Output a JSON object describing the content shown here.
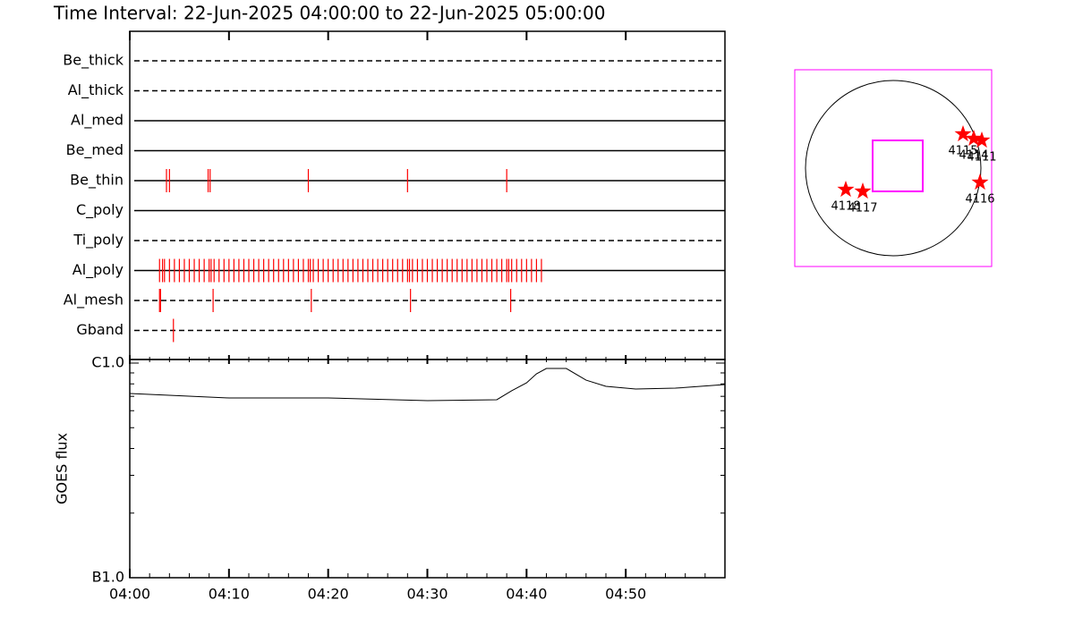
{
  "chart_data": [
    {
      "type": "timeline",
      "title": "Time Interval: 22-Jun-2025 04:00:00 to 22-Jun-2025 05:00:00",
      "rows": [
        "Be_thick",
        "Al_thick",
        "Al_med",
        "Be_med",
        "Be_thin",
        "C_poly",
        "Ti_poly",
        "Al_poly",
        "Al_mesh",
        "Gband"
      ],
      "dashed": [
        true,
        true,
        false,
        false,
        false,
        false,
        true,
        false,
        true,
        true
      ],
      "color": "#ff0000",
      "xlim": [
        0,
        60
      ],
      "events": [
        [],
        [],
        [],
        [],
        [
          3.7,
          4.0,
          7.9,
          8.1,
          18.0,
          28.0,
          38.0
        ],
        [],
        [],
        [
          3.0,
          3.3,
          3.5,
          4.0,
          4.5,
          5.0,
          5.5,
          6.0,
          6.5,
          7.0,
          7.5,
          8.0,
          8.2,
          8.5,
          9.0,
          9.5,
          10.0,
          10.5,
          11.0,
          11.5,
          12.0,
          12.5,
          13.0,
          13.5,
          14.0,
          14.5,
          15.0,
          15.5,
          16.0,
          16.5,
          17.0,
          17.5,
          18.0,
          18.2,
          18.5,
          19.0,
          19.5,
          20.0,
          20.5,
          21.0,
          21.5,
          22.0,
          22.5,
          23.0,
          23.5,
          24.0,
          24.5,
          25.0,
          25.5,
          26.0,
          26.5,
          27.0,
          27.5,
          28.0,
          28.2,
          28.5,
          29.0,
          29.5,
          30.0,
          30.5,
          31.0,
          31.5,
          32.0,
          32.5,
          33.0,
          33.5,
          34.0,
          34.5,
          35.0,
          35.5,
          36.0,
          36.5,
          37.0,
          37.5,
          38.0,
          38.2,
          38.5,
          39.0,
          39.5,
          40.0,
          40.5,
          41.0,
          41.5
        ],
        [
          3.0,
          3.1,
          8.4,
          18.3,
          28.3,
          38.4
        ],
        [
          4.4
        ]
      ]
    },
    {
      "type": "line",
      "ylabel": "GOES flux",
      "log": true,
      "xlim": [
        0,
        60
      ],
      "ylim": [
        1e-07,
        1e-06
      ],
      "yticks": [
        {
          "value": 1e-06,
          "label": "C1.0"
        },
        {
          "value": 1e-07,
          "label": "B1.0"
        }
      ],
      "xticks": [
        {
          "value": 0,
          "label": "04:00"
        },
        {
          "value": 10,
          "label": "04:10"
        },
        {
          "value": 20,
          "label": "04:20"
        },
        {
          "value": 30,
          "label": "04:30"
        },
        {
          "value": 40,
          "label": "04:40"
        },
        {
          "value": 50,
          "label": "04:50"
        }
      ],
      "color": "#000000",
      "x": [
        0,
        10,
        20,
        30,
        37,
        38.5,
        40,
        41,
        42,
        44,
        46,
        48,
        51,
        55,
        60
      ],
      "values": [
        7.22e-07,
        6.88e-07,
        6.88e-07,
        6.68e-07,
        6.75e-07,
        7.43e-07,
        8.09e-07,
        8.91e-07,
        9.44e-07,
        9.44e-07,
        8.33e-07,
        7.79e-07,
        7.57e-07,
        7.64e-07,
        7.94e-07
      ]
    },
    {
      "type": "scatter",
      "xlim": [
        -1100,
        1100
      ],
      "ylim": [
        -1100,
        1100
      ],
      "limb_radius": 980,
      "fov_x": [
        -230,
        330
      ],
      "fov_y": [
        -260,
        310
      ],
      "frame_color": "#ff00ff",
      "color": "#ff0000",
      "labels": [
        "4115",
        "4114",
        "4111",
        "4116",
        "4118",
        "4117"
      ],
      "x": [
        780,
        900,
        990,
        970,
        -530,
        -340
      ],
      "values": [
        380,
        330,
        310,
        -160,
        -240,
        -260
      ]
    }
  ]
}
